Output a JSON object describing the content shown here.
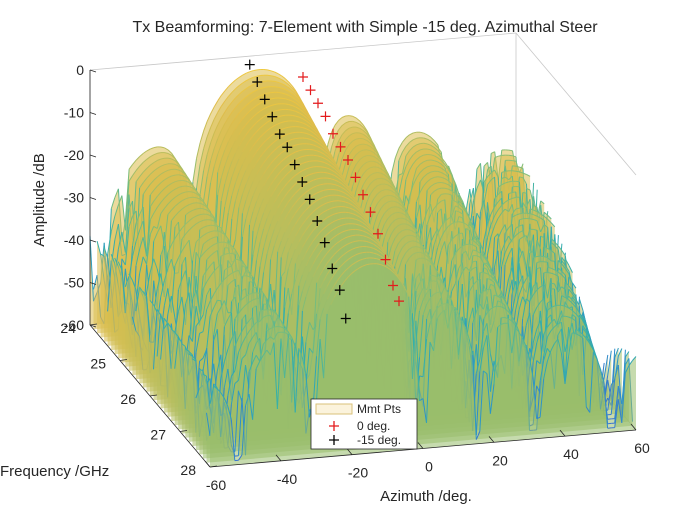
{
  "chart_data": {
    "type": "surface",
    "title": "Tx Beamforming: 7-Element with Simple -15 deg. Azimuthal Steer",
    "xlabel": "Azimuth /deg.",
    "ylabel": "Frequency /GHz",
    "zlabel": "Amplitude /dB",
    "xlim": [
      -60,
      60
    ],
    "ylim": [
      24,
      28
    ],
    "zlim": [
      -60,
      0
    ],
    "xticks": [
      "-60",
      "-40",
      "-20",
      "0",
      "20",
      "40",
      "60"
    ],
    "yticks": [
      "24",
      "25",
      "26",
      "27",
      "28"
    ],
    "zticks": [
      "0",
      "-10",
      "-20",
      "-30",
      "-40",
      "-50",
      "-60"
    ],
    "colormap": [
      "#3a6fd0",
      "#2c95c8",
      "#35b0aa",
      "#7cbd7a",
      "#b9bd5c",
      "#e2bd4a",
      "#f5cf3a"
    ],
    "legend": {
      "location": "bottom-center",
      "entries": [
        {
          "label": "Mmt Pts",
          "color": "#d9c27a",
          "marker": "box"
        },
        {
          "label": "0 deg.",
          "color": "#e31a1c",
          "marker": "+"
        },
        {
          "label": "-15 deg.",
          "color": "#000000",
          "marker": "+"
        }
      ]
    },
    "series": [
      {
        "name": "0 deg.",
        "color": "#e31a1c",
        "points": [
          {
            "az": 0,
            "f": 24.0,
            "z": -6
          },
          {
            "az": 0,
            "f": 24.25,
            "z": -7
          },
          {
            "az": 0,
            "f": 24.5,
            "z": -8
          },
          {
            "az": 0,
            "f": 24.75,
            "z": -9
          },
          {
            "az": 0,
            "f": 25.0,
            "z": -11
          },
          {
            "az": 0,
            "f": 25.25,
            "z": -12
          },
          {
            "az": 0,
            "f": 25.5,
            "z": -13
          },
          {
            "az": 0,
            "f": 25.75,
            "z": -15
          },
          {
            "az": 0,
            "f": 26.0,
            "z": -17
          },
          {
            "az": 0,
            "f": 26.25,
            "z": -19
          },
          {
            "az": 0,
            "f": 26.5,
            "z": -22
          },
          {
            "az": 0,
            "f": 26.75,
            "z": -26
          },
          {
            "az": 0,
            "f": 27.0,
            "z": -30
          },
          {
            "az": 0,
            "f": 27.2,
            "z": -32
          }
        ]
      },
      {
        "name": "-15 deg.",
        "color": "#000000",
        "points": [
          {
            "az": -15,
            "f": 24.0,
            "z": -2
          },
          {
            "az": -15,
            "f": 24.25,
            "z": -4
          },
          {
            "az": -15,
            "f": 24.5,
            "z": -6
          },
          {
            "az": -15,
            "f": 24.75,
            "z": -8
          },
          {
            "az": -15,
            "f": 25.0,
            "z": -10
          },
          {
            "az": -15,
            "f": 25.25,
            "z": -11
          },
          {
            "az": -15,
            "f": 25.5,
            "z": -13
          },
          {
            "az": -15,
            "f": 25.75,
            "z": -15
          },
          {
            "az": -15,
            "f": 26.0,
            "z": -17
          },
          {
            "az": -15,
            "f": 26.25,
            "z": -20
          },
          {
            "az": -15,
            "f": 26.5,
            "z": -23
          },
          {
            "az": -15,
            "f": 26.75,
            "z": -27
          },
          {
            "az": -15,
            "f": 27.0,
            "z": -30
          },
          {
            "az": -15,
            "f": 27.2,
            "z": -35
          }
        ]
      }
    ]
  }
}
